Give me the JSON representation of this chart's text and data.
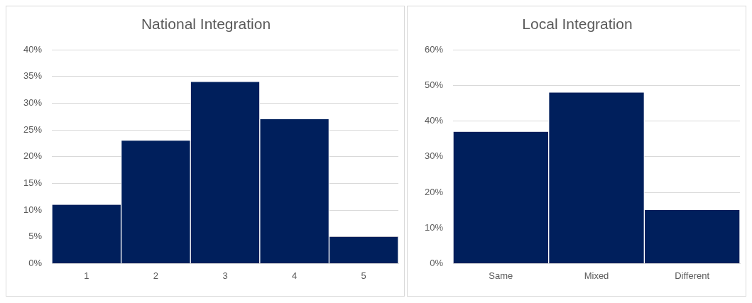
{
  "chart_data": [
    {
      "type": "bar",
      "title": "National Integration",
      "categories": [
        "1",
        "2",
        "3",
        "4",
        "5"
      ],
      "values": [
        11,
        23,
        34,
        27,
        5
      ],
      "color": "#001f5c",
      "ylim": [
        0,
        40
      ],
      "yticks": [
        {
          "value": 0,
          "label": "0%"
        },
        {
          "value": 5,
          "label": "5%"
        },
        {
          "value": 10,
          "label": "10%"
        },
        {
          "value": 15,
          "label": "15%"
        },
        {
          "value": 20,
          "label": "20%"
        },
        {
          "value": 25,
          "label": "25%"
        },
        {
          "value": 30,
          "label": "30%"
        },
        {
          "value": 35,
          "label": "35%"
        },
        {
          "value": 40,
          "label": "40%"
        }
      ],
      "grid": "y"
    },
    {
      "type": "bar",
      "title": "Local Integration",
      "categories": [
        "Same",
        "Mixed",
        "Different"
      ],
      "values": [
        37,
        48,
        15
      ],
      "color": "#001f5c",
      "ylim": [
        0,
        60
      ],
      "yticks": [
        {
          "value": 0,
          "label": "0%"
        },
        {
          "value": 10,
          "label": "10%"
        },
        {
          "value": 20,
          "label": "20%"
        },
        {
          "value": 30,
          "label": "30%"
        },
        {
          "value": 40,
          "label": "40%"
        },
        {
          "value": 50,
          "label": "50%"
        },
        {
          "value": 60,
          "label": "60%"
        }
      ],
      "grid": "y"
    }
  ]
}
